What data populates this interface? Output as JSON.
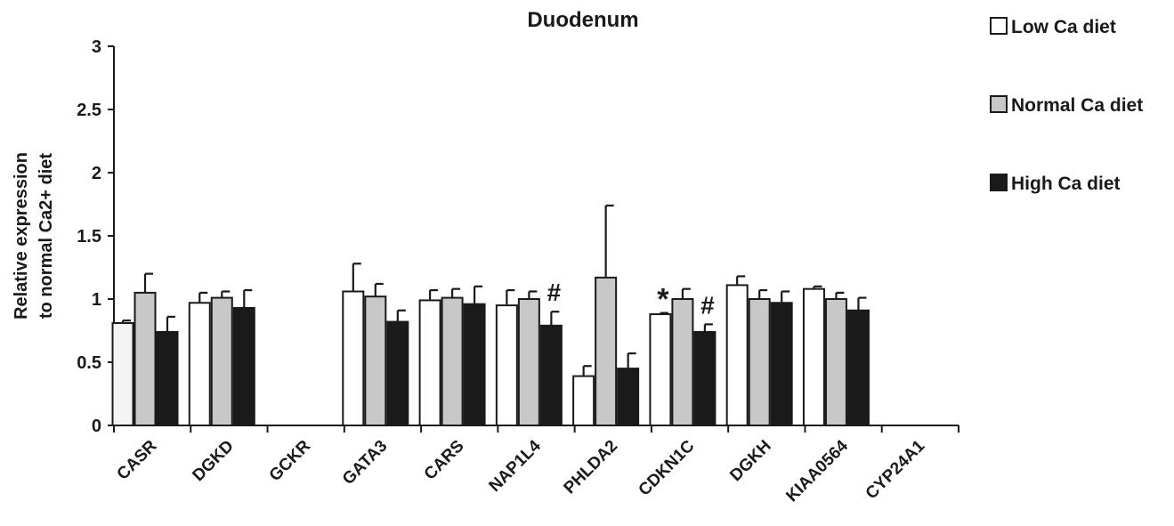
{
  "chart_data": {
    "type": "bar",
    "title": "Duodenum",
    "ylabel_lines": [
      "Relative expression",
      "to normal Ca2+ diet"
    ],
    "xlabel": "",
    "ylim": [
      0,
      3
    ],
    "yticks": [
      "0",
      "0.5",
      "1",
      "1.5",
      "2",
      "2.5",
      "3"
    ],
    "ytick_values": [
      0,
      0.5,
      1,
      1.5,
      2,
      2.5,
      3
    ],
    "categories": [
      "CASR",
      "DGKD",
      "GCKR",
      "GATA3",
      "CARS",
      "NAP1L4",
      "PHLDA2",
      "CDKN1C",
      "DGKH",
      "KIAA0564",
      "CYP24A1"
    ],
    "series": [
      {
        "name": "Low Ca diet",
        "color": "#ffffff",
        "values": [
          0.81,
          0.97,
          null,
          1.06,
          0.99,
          0.95,
          0.39,
          0.88,
          1.11,
          1.08,
          null
        ],
        "errors": [
          0.02,
          0.08,
          null,
          0.22,
          0.08,
          0.12,
          0.08,
          0.01,
          0.07,
          0.02,
          null
        ]
      },
      {
        "name": "Normal Ca diet",
        "color": "#c8c8c8",
        "values": [
          1.05,
          1.01,
          null,
          1.02,
          1.01,
          1.0,
          1.17,
          1.0,
          1.0,
          1.0,
          null
        ],
        "errors": [
          0.15,
          0.05,
          null,
          0.1,
          0.07,
          0.06,
          0.57,
          0.08,
          0.07,
          0.05,
          null
        ]
      },
      {
        "name": "High Ca diet",
        "color": "#1a1a1a",
        "values": [
          0.74,
          0.93,
          null,
          0.82,
          0.96,
          0.79,
          0.45,
          0.74,
          0.97,
          0.91,
          null
        ],
        "errors": [
          0.12,
          0.14,
          null,
          0.09,
          0.14,
          0.11,
          0.12,
          0.06,
          0.09,
          0.1,
          null
        ]
      }
    ],
    "annotations": [
      {
        "text": "#",
        "category": "NAP1L4",
        "series": "High Ca diet"
      },
      {
        "text": "*",
        "category": "CDKN1C",
        "series": "Low Ca diet"
      },
      {
        "text": "#",
        "category": "CDKN1C",
        "series": "High Ca diet"
      }
    ],
    "legend_position": "top-right",
    "grid": false
  }
}
